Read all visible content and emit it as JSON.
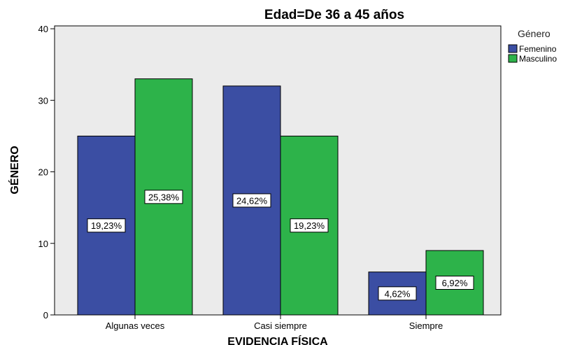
{
  "chart_data": {
    "type": "bar",
    "title": "Edad=De 36 a 45 años",
    "xlabel": "EVIDENCIA FÍSICA",
    "ylabel": "GÉNERO",
    "categories": [
      "Algunas veces",
      "Casi siempre",
      "Siempre"
    ],
    "yticks": [
      0,
      10,
      20,
      30,
      40
    ],
    "ylim": [
      0,
      40
    ],
    "legend_title": "Género",
    "legend_position": "right",
    "series": [
      {
        "name": "Femenino",
        "color": "#3b4ea3",
        "values": [
          25,
          32,
          6
        ],
        "labels": [
          "19,23%",
          "24,62%",
          "4,62%"
        ]
      },
      {
        "name": "Masculino",
        "color": "#2db34a",
        "values": [
          33,
          25,
          9
        ],
        "labels": [
          "25,38%",
          "19,23%",
          "6,92%"
        ]
      }
    ],
    "plot_background": "#ebebeb",
    "grid": false
  }
}
